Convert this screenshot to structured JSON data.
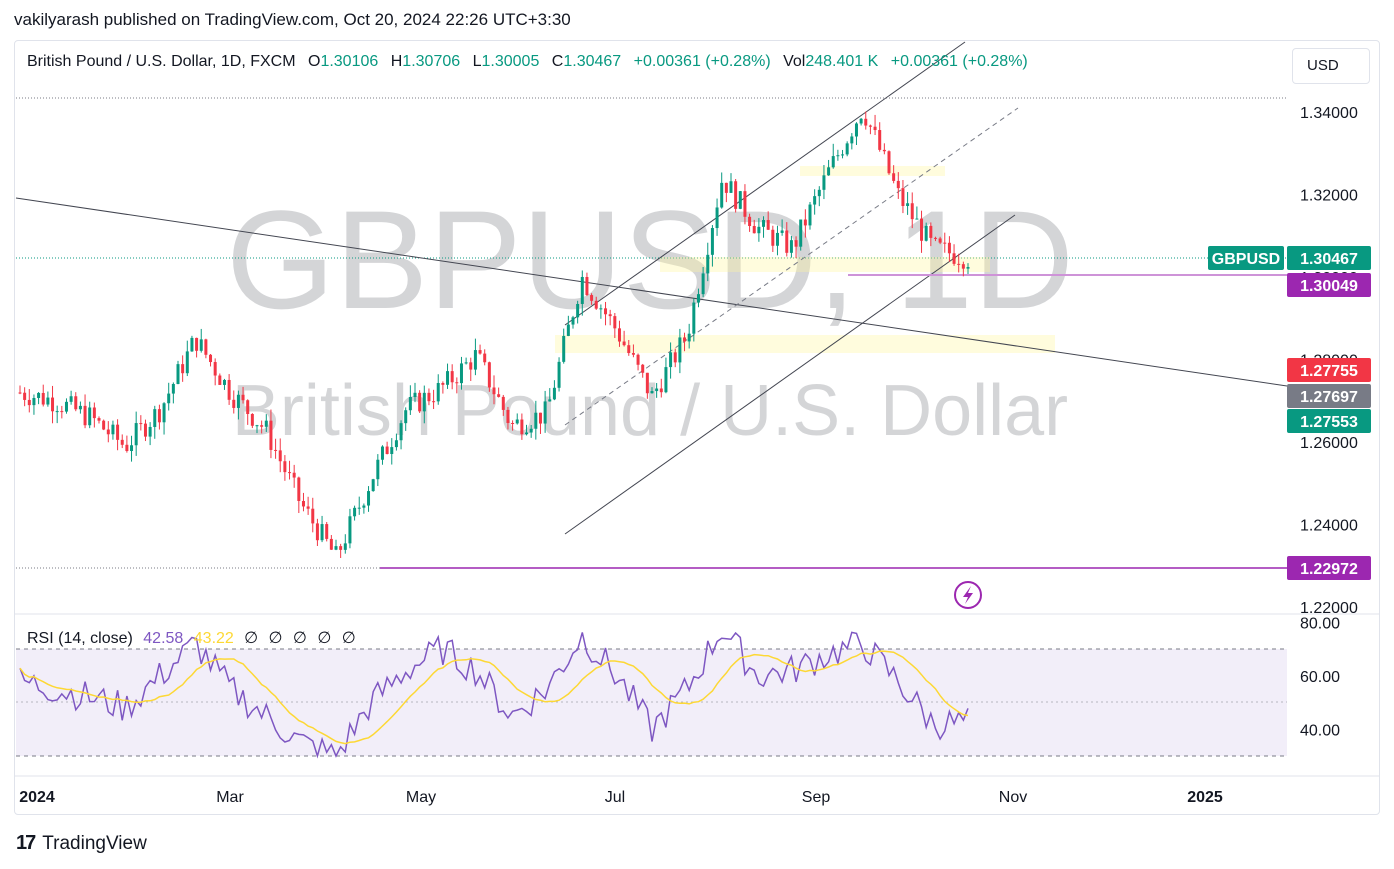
{
  "header": {
    "published": "vakilyarash published on TradingView.com, Oct 20, 2024 22:26 UTC+3:30"
  },
  "legend": {
    "symbol": "British Pound / U.S. Dollar, 1D, FXCM",
    "o_label": "O",
    "o": "1.30106",
    "h_label": "H",
    "h": "1.30706",
    "l_label": "L",
    "l": "1.30005",
    "c_label": "C",
    "c": "1.30467",
    "change": "+0.00361 (+0.28%)",
    "vol_label": "Vol",
    "vol": "248.401 K",
    "change2": "+0.00361 (+0.28%)"
  },
  "currency_button": "USD",
  "watermark": {
    "ticker": "GBPUSD, 1D",
    "name": "British Pound / U.S. Dollar"
  },
  "price_axis": {
    "ticks": [
      "1.34000",
      "1.32000",
      "1.30000",
      "1.28000",
      "1.26000",
      "1.24000",
      "1.22000"
    ]
  },
  "price_labels": [
    {
      "text": "GBPUSD",
      "color": "#089981"
    },
    {
      "text": "1.30467",
      "color": "#089981"
    },
    {
      "text": "1.30049",
      "color": "#9c27b0"
    },
    {
      "text": "1.27755",
      "color": "#f23645"
    },
    {
      "text": "1.27697",
      "color": "#787b86"
    },
    {
      "text": "1.27553",
      "color": "#089981"
    },
    {
      "text": "1.22972",
      "color": "#9c27b0"
    }
  ],
  "time_axis": [
    "2024",
    "Mar",
    "May",
    "Jul",
    "Sep",
    "Nov",
    "2025"
  ],
  "rsi": {
    "label": "RSI (14, close)",
    "value": "42.58",
    "ma_value": "43.22",
    "empty_values": [
      "∅",
      "∅",
      "∅",
      "∅",
      "∅"
    ],
    "ticks": [
      "80.00",
      "60.00",
      "40.00"
    ]
  },
  "footer": {
    "brand": "TradingView",
    "logo_icon": "tradingview-logo-icon"
  },
  "chart_data": {
    "type": "line",
    "title": "British Pound / U.S. Dollar, 1D, FXCM",
    "price_range": [
      1.22,
      1.344
    ],
    "series": [
      {
        "name": "GBPUSD",
        "x": [
          "2024-01-01",
          "2024-01-15",
          "2024-02-01",
          "2024-02-15",
          "2024-03-01",
          "2024-03-08",
          "2024-03-20",
          "2024-04-01",
          "2024-04-15",
          "2024-04-22",
          "2024-05-01",
          "2024-05-15",
          "2024-06-01",
          "2024-06-12",
          "2024-06-24",
          "2024-07-01",
          "2024-07-17",
          "2024-07-25",
          "2024-08-05",
          "2024-08-15",
          "2024-08-27",
          "2024-09-01",
          "2024-09-11",
          "2024-09-20",
          "2024-09-26",
          "2024-10-01",
          "2024-10-10",
          "2024-10-18"
        ],
        "values": [
          1.272,
          1.27,
          1.266,
          1.259,
          1.268,
          1.285,
          1.272,
          1.263,
          1.245,
          1.232,
          1.251,
          1.268,
          1.273,
          1.281,
          1.264,
          1.267,
          1.3,
          1.287,
          1.271,
          1.286,
          1.324,
          1.312,
          1.307,
          1.325,
          1.341,
          1.32,
          1.307,
          1.3047
        ]
      }
    ],
    "rsi_series": {
      "name": "RSI (14, close)",
      "values": [
        58,
        55,
        52,
        48,
        60,
        72,
        55,
        45,
        35,
        30,
        50,
        62,
        70,
        62,
        45,
        55,
        75,
        60,
        40,
        55,
        78,
        60,
        62,
        68,
        72,
        58,
        42,
        42.58
      ]
    },
    "annotations": [
      "ascending channel",
      "long-term descending trendline",
      "horizontal support 1.22972",
      "horizontal level 1.30049",
      "supply zone around 1.3000",
      "demand zone around 1.2800"
    ]
  }
}
